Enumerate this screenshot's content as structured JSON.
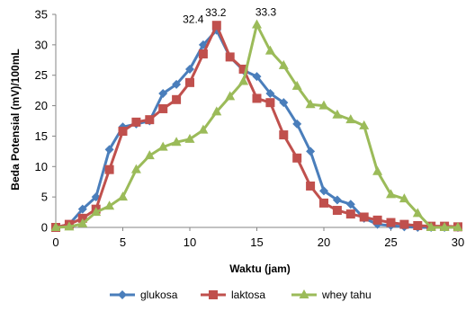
{
  "chart_data": {
    "type": "line",
    "xlabel": "Waktu (jam)",
    "ylabel": "Beda Potensial (mV)/100mL",
    "xlim": [
      0,
      30
    ],
    "ylim": [
      0,
      35
    ],
    "xticks": [
      0,
      5,
      10,
      15,
      20,
      25,
      30
    ],
    "yticks": [
      0,
      5,
      10,
      15,
      20,
      25,
      30,
      35
    ],
    "grid": false,
    "legend_position": "bottom",
    "series": [
      {
        "name": "glukosa",
        "color": "#4a7ebb",
        "marker": "diamond",
        "x": [
          0,
          1,
          2,
          3,
          4,
          5,
          6,
          7,
          8,
          9,
          10,
          11,
          12,
          13,
          14,
          15,
          16,
          17,
          18,
          19,
          20,
          21,
          22,
          23,
          24,
          25,
          26,
          27,
          28,
          29,
          30
        ],
        "y": [
          0,
          0.5,
          3,
          5,
          12.8,
          16.5,
          17,
          17.5,
          22,
          23.5,
          26,
          30,
          32.4,
          28,
          25.8,
          24.8,
          22,
          20.5,
          17,
          12.5,
          6,
          4.5,
          3.8,
          1.5,
          0.5,
          0.3,
          0.1,
          0,
          0,
          0,
          0
        ]
      },
      {
        "name": "laktosa",
        "color": "#c0504d",
        "marker": "square",
        "x": [
          0,
          1,
          2,
          3,
          4,
          5,
          6,
          7,
          8,
          9,
          10,
          11,
          12,
          13,
          14,
          15,
          16,
          17,
          18,
          19,
          20,
          21,
          22,
          23,
          24,
          25,
          26,
          27,
          28,
          29,
          30
        ],
        "y": [
          0,
          0.5,
          1.5,
          3,
          9.5,
          15.8,
          17.3,
          17.7,
          19.5,
          21,
          23.8,
          28.5,
          33.2,
          28,
          26,
          21.2,
          20.5,
          15.2,
          11.4,
          6.8,
          4,
          2.8,
          2.2,
          1.7,
          1.2,
          0.8,
          0.5,
          0.3,
          0.2,
          0.2,
          0.1
        ]
      },
      {
        "name": "whey tahu",
        "color": "#9bbb59",
        "marker": "triangle",
        "x": [
          0,
          1,
          2,
          3,
          4,
          5,
          6,
          7,
          8,
          9,
          10,
          11,
          12,
          13,
          14,
          15,
          16,
          17,
          18,
          19,
          20,
          21,
          22,
          23,
          24,
          25,
          26,
          27,
          28,
          29,
          30
        ],
        "y": [
          0,
          0.1,
          0.6,
          2.5,
          3.5,
          5,
          9.5,
          11.8,
          13.2,
          14,
          14.5,
          16,
          19,
          21.5,
          24,
          33.3,
          29,
          26.6,
          23.2,
          20.2,
          20,
          18.5,
          17.7,
          16.7,
          9.2,
          5.4,
          4.7,
          2.3,
          0,
          0,
          0
        ]
      }
    ],
    "annotations": [
      {
        "text": "32.4",
        "x": 12,
        "y": 32.4
      },
      {
        "text": "33.2",
        "x": 12,
        "y": 33.2
      },
      {
        "text": "33.3",
        "x": 15,
        "y": 33.3
      }
    ]
  }
}
